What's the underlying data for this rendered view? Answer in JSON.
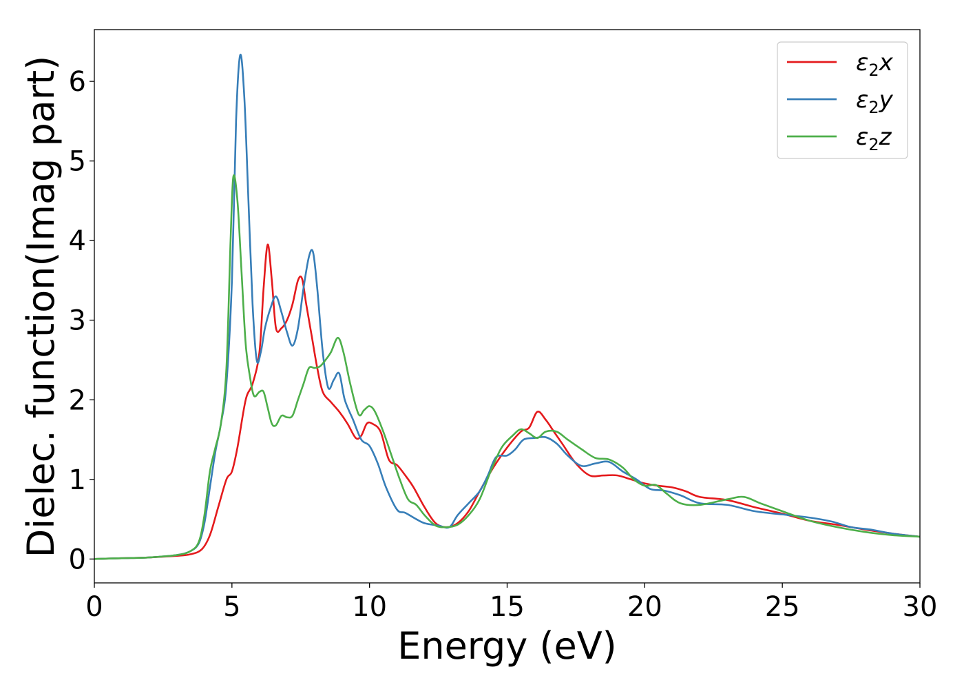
{
  "chart_data": {
    "type": "line",
    "title": "",
    "xlabel": "Energy (eV)",
    "ylabel": "Dielec. function(Imag part)",
    "xlim": [
      0,
      30
    ],
    "ylim": [
      -0.3,
      6.65
    ],
    "xticks": [
      0,
      5,
      10,
      15,
      20,
      25,
      30
    ],
    "yticks": [
      0,
      1,
      2,
      3,
      4,
      5,
      6
    ],
    "grid": false,
    "legend_position": "top-right",
    "series": [
      {
        "name": "ε₂x",
        "legend_base": "ε",
        "legend_sub": "2",
        "legend_suffix": "x",
        "color": "#e41a1c",
        "x": [
          0,
          1,
          2,
          3,
          3.5,
          3.9,
          4.2,
          4.5,
          4.8,
          5.0,
          5.2,
          5.5,
          5.75,
          6.0,
          6.15,
          6.3,
          6.45,
          6.6,
          6.8,
          7.0,
          7.2,
          7.4,
          7.55,
          7.7,
          7.9,
          8.1,
          8.3,
          8.6,
          8.9,
          9.2,
          9.5,
          9.7,
          9.9,
          10.1,
          10.4,
          10.7,
          11.0,
          11.3,
          11.6,
          12.0,
          12.4,
          12.8,
          13.2,
          13.6,
          14.0,
          14.5,
          15.0,
          15.5,
          15.8,
          16.1,
          16.4,
          16.7,
          17.0,
          17.5,
          18.0,
          18.5,
          19.0,
          19.5,
          20.0,
          20.5,
          21.0,
          21.5,
          22.0,
          23.0,
          24.0,
          25.0,
          26.0,
          27.0,
          28.0,
          29.0,
          30.0
        ],
        "y": [
          0,
          0.01,
          0.02,
          0.04,
          0.06,
          0.12,
          0.3,
          0.65,
          1.0,
          1.1,
          1.4,
          2.0,
          2.2,
          2.6,
          3.4,
          3.95,
          3.5,
          2.9,
          2.9,
          3.0,
          3.2,
          3.5,
          3.52,
          3.2,
          2.8,
          2.4,
          2.1,
          1.97,
          1.85,
          1.7,
          1.52,
          1.55,
          1.7,
          1.7,
          1.6,
          1.25,
          1.18,
          1.05,
          0.9,
          0.65,
          0.45,
          0.4,
          0.45,
          0.6,
          0.85,
          1.15,
          1.4,
          1.6,
          1.65,
          1.85,
          1.75,
          1.6,
          1.45,
          1.2,
          1.05,
          1.05,
          1.05,
          1.0,
          0.95,
          0.92,
          0.9,
          0.85,
          0.78,
          0.74,
          0.65,
          0.57,
          0.48,
          0.43,
          0.37,
          0.32,
          0.28
        ]
      },
      {
        "name": "ε₂y",
        "legend_base": "ε",
        "legend_sub": "2",
        "legend_suffix": "y",
        "color": "#377eb8",
        "x": [
          0,
          1,
          2,
          3,
          3.5,
          3.8,
          4.0,
          4.2,
          4.4,
          4.6,
          4.8,
          5.0,
          5.15,
          5.3,
          5.45,
          5.6,
          5.75,
          5.9,
          6.05,
          6.2,
          6.4,
          6.6,
          6.8,
          7.0,
          7.2,
          7.4,
          7.6,
          7.8,
          7.95,
          8.1,
          8.3,
          8.5,
          8.7,
          8.9,
          9.1,
          9.4,
          9.7,
          10.0,
          10.3,
          10.6,
          11.0,
          11.3,
          11.7,
          12.0,
          12.5,
          12.9,
          13.2,
          13.6,
          14.0,
          14.3,
          14.6,
          15.0,
          15.3,
          15.6,
          16.0,
          16.4,
          16.8,
          17.2,
          17.7,
          18.2,
          18.7,
          19.2,
          19.7,
          20.2,
          20.7,
          21.3,
          22.0,
          23.0,
          24.0,
          25.0,
          26.0,
          26.8,
          27.5,
          28.2,
          29.0,
          30.0
        ],
        "y": [
          0,
          0.01,
          0.02,
          0.05,
          0.1,
          0.2,
          0.45,
          0.9,
          1.35,
          1.7,
          2.2,
          3.5,
          5.5,
          6.33,
          5.8,
          4.5,
          3.2,
          2.5,
          2.6,
          2.9,
          3.15,
          3.3,
          3.1,
          2.85,
          2.68,
          2.9,
          3.4,
          3.8,
          3.85,
          3.4,
          2.6,
          2.15,
          2.25,
          2.33,
          2.0,
          1.75,
          1.5,
          1.42,
          1.2,
          0.9,
          0.62,
          0.58,
          0.5,
          0.45,
          0.42,
          0.4,
          0.55,
          0.7,
          0.85,
          1.05,
          1.28,
          1.3,
          1.38,
          1.5,
          1.52,
          1.53,
          1.45,
          1.3,
          1.17,
          1.2,
          1.22,
          1.1,
          1.0,
          0.88,
          0.86,
          0.8,
          0.7,
          0.68,
          0.6,
          0.56,
          0.52,
          0.47,
          0.4,
          0.37,
          0.32,
          0.28
        ]
      },
      {
        "name": "ε₂z",
        "legend_base": "ε",
        "legend_sub": "2",
        "legend_suffix": "z",
        "color": "#4daf4a",
        "x": [
          0,
          1,
          2,
          3,
          3.5,
          3.8,
          4.0,
          4.2,
          4.4,
          4.6,
          4.8,
          4.95,
          5.05,
          5.2,
          5.35,
          5.5,
          5.65,
          5.8,
          6.0,
          6.15,
          6.3,
          6.45,
          6.6,
          6.8,
          7.0,
          7.2,
          7.4,
          7.6,
          7.8,
          8.0,
          8.2,
          8.4,
          8.6,
          8.85,
          9.05,
          9.3,
          9.6,
          9.8,
          10.0,
          10.2,
          10.5,
          10.8,
          11.1,
          11.4,
          11.7,
          12.0,
          12.4,
          12.8,
          13.2,
          13.6,
          14.0,
          14.4,
          14.8,
          15.2,
          15.5,
          15.8,
          16.1,
          16.4,
          16.8,
          17.2,
          17.7,
          18.2,
          18.7,
          19.2,
          19.6,
          20.0,
          20.4,
          20.8,
          21.3,
          22.0,
          23.0,
          23.6,
          24.2,
          25.0,
          26.0,
          27.0,
          28.0,
          29.0,
          30.0
        ],
        "y": [
          0,
          0.01,
          0.02,
          0.05,
          0.1,
          0.22,
          0.55,
          1.1,
          1.4,
          1.7,
          2.4,
          4.0,
          4.8,
          4.5,
          3.6,
          2.7,
          2.3,
          2.05,
          2.1,
          2.1,
          1.9,
          1.7,
          1.68,
          1.8,
          1.78,
          1.8,
          2.0,
          2.2,
          2.4,
          2.4,
          2.42,
          2.5,
          2.6,
          2.78,
          2.6,
          2.2,
          1.82,
          1.87,
          1.92,
          1.85,
          1.6,
          1.3,
          1.0,
          0.75,
          0.68,
          0.55,
          0.42,
          0.4,
          0.43,
          0.55,
          0.75,
          1.1,
          1.4,
          1.55,
          1.63,
          1.58,
          1.52,
          1.6,
          1.6,
          1.5,
          1.38,
          1.27,
          1.25,
          1.15,
          1.0,
          0.92,
          0.93,
          0.82,
          0.7,
          0.68,
          0.75,
          0.78,
          0.7,
          0.6,
          0.48,
          0.4,
          0.34,
          0.3,
          0.28
        ]
      }
    ]
  }
}
